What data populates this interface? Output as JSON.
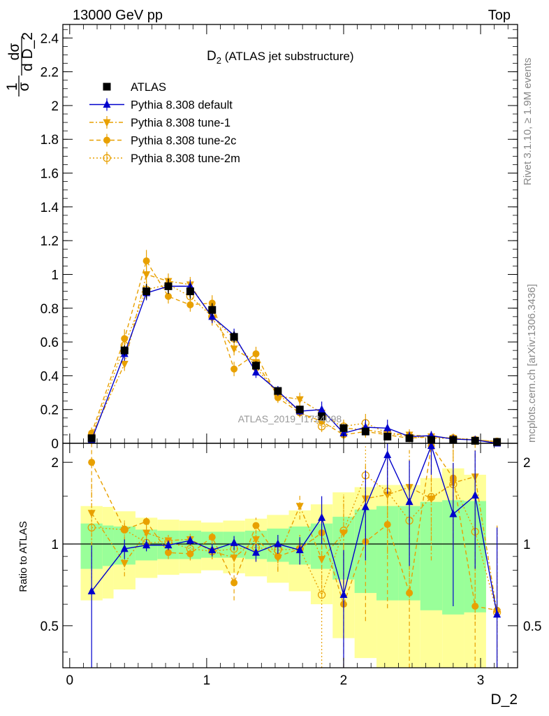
{
  "header": {
    "left_label": "13000 GeV pp",
    "right_label": "Top"
  },
  "side_text": {
    "rivet": "Rivet 3.1.10, ≥ 1.9M events",
    "mcplots": "mcplots.cern.ch [arXiv:1306.3436]"
  },
  "colors": {
    "data": "#000000",
    "default": "#0000cc",
    "tunes": "#e8a000",
    "band_inner": "#99ff99",
    "band_outer": "#ffff99"
  },
  "chart_data": {
    "type": "line",
    "title_main": "D",
    "title_sub": "2",
    "title_rest": " (ATLAS jet substructure)",
    "ylabel_parts": [
      "1",
      "σ",
      "dσ",
      "d D_2"
    ],
    "xlabel": "D_2",
    "watermark": "ATLAS_2019_I1724098",
    "ratio_ylabel": "Ratio to ATLAS",
    "xlim": [
      -0.05,
      3.27
    ],
    "ylim": [
      0,
      2.48
    ],
    "ratio_ylim": [
      0.35,
      2.35
    ],
    "ratio_scale": "log",
    "x_ticks": [
      "0",
      "1",
      "2",
      "3"
    ],
    "y_ticks": [
      "0",
      "0.2",
      "0.4",
      "0.6",
      "0.8",
      "1",
      "1.2",
      "1.4",
      "1.6",
      "1.8",
      "2",
      "2.2",
      "2.4"
    ],
    "ratio_ticks": [
      "0.5",
      "1",
      "2"
    ],
    "bins": [
      0.08,
      0.24,
      0.32,
      0.48,
      0.64,
      0.8,
      0.96,
      1.12,
      1.28,
      1.44,
      1.6,
      1.76,
      1.92,
      2.08,
      2.24,
      2.4,
      2.56,
      2.72,
      2.88,
      3.04,
      3.2
    ],
    "x": [
      0.16,
      0.4,
      0.56,
      0.72,
      0.88,
      1.04,
      1.2,
      1.36,
      1.52,
      1.68,
      1.84,
      2.0,
      2.16,
      2.32,
      2.48,
      2.64,
      2.8,
      2.96,
      3.12
    ],
    "data_values": [
      0.03,
      0.55,
      0.9,
      0.93,
      0.9,
      0.79,
      0.63,
      0.46,
      0.31,
      0.2,
      0.16,
      0.09,
      0.07,
      0.04,
      0.03,
      0.02,
      0.02,
      0.015,
      0.008
    ],
    "band_inner": [
      0.19,
      0.17,
      0.16,
      0.13,
      0.12,
      0.12,
      0.11,
      0.11,
      0.12,
      0.14,
      0.16,
      0.19,
      0.26,
      0.34,
      0.38,
      0.38,
      0.43,
      0.45,
      0.44
    ],
    "band_outer": [
      0.38,
      0.37,
      0.32,
      0.25,
      0.23,
      0.22,
      0.2,
      0.22,
      0.24,
      0.28,
      0.33,
      0.4,
      0.55,
      0.62,
      0.65,
      0.65,
      0.75,
      0.9,
      0.8
    ],
    "legend": [
      {
        "label": "ATLAS",
        "marker": "square",
        "color": "#000000"
      },
      {
        "label": "Pythia 8.308 default",
        "marker": "triangle-up",
        "color": "#0000cc",
        "dash": "solid"
      },
      {
        "label": "Pythia 8.308 tune-1",
        "marker": "triangle-down",
        "color": "#e8a000",
        "dash": "dashdot"
      },
      {
        "label": "Pythia 8.308 tune-2c",
        "marker": "circle",
        "color": "#e8a000",
        "dash": "dashed"
      },
      {
        "label": "Pythia 8.308 tune-2m",
        "marker": "open-circle",
        "color": "#e8a000",
        "dash": "dotted"
      }
    ],
    "series": [
      {
        "name": "Pythia 8.308 default",
        "values": [
          0.02,
          0.53,
          0.89,
          0.93,
          0.93,
          0.75,
          0.64,
          0.42,
          0.31,
          0.19,
          0.2,
          0.06,
          0.095,
          0.09,
          0.04,
          0.045,
          0.025,
          0.02,
          0.0
        ],
        "ratio": [
          0.67,
          0.96,
          0.99,
          0.99,
          1.03,
          0.95,
          1.01,
          0.93,
          1.0,
          0.95,
          1.25,
          0.65,
          1.37,
          2.13,
          1.43,
          2.3,
          1.29,
          1.51,
          0.55
        ],
        "ratio_err": [
          0.32,
          0.08,
          0.05,
          0.04,
          0.04,
          0.05,
          0.06,
          0.07,
          0.08,
          0.11,
          0.25,
          0.3,
          0.5,
          0.6,
          0.6,
          0.5,
          0.7,
          0.7,
          0.6
        ]
      },
      {
        "name": "Pythia 8.308 tune-1",
        "values": [
          0.04,
          0.47,
          1.0,
          0.96,
          0.94,
          0.74,
          0.56,
          0.48,
          0.28,
          0.26,
          0.18,
          0.09,
          0.08,
          0.06,
          0.05,
          0.04,
          0.03,
          0.02,
          0.01
        ],
        "ratio": [
          1.3,
          0.85,
          1.1,
          1.03,
          1.04,
          0.94,
          0.89,
          1.04,
          0.89,
          1.38,
          0.88,
          1.1,
          1.47,
          1.52,
          1.62,
          1.47,
          1.68,
          1.77,
          0.56
        ],
        "ratio_err": [
          0.4,
          0.09,
          0.07,
          0.05,
          0.05,
          0.06,
          0.07,
          0.08,
          0.1,
          0.15,
          0.25,
          0.4,
          0.5,
          0.6,
          0.6,
          0.6,
          0.7,
          0.7,
          0.6
        ]
      },
      {
        "name": "Pythia 8.308 tune-2c",
        "values": [
          0.06,
          0.62,
          1.08,
          0.87,
          0.82,
          0.83,
          0.44,
          0.53,
          0.27,
          0.18,
          0.13,
          0.05,
          0.07,
          0.05,
          0.03,
          0.04,
          0.03,
          0.02,
          0.01
        ],
        "ratio": [
          2.0,
          1.13,
          1.21,
          0.93,
          0.92,
          1.06,
          0.72,
          1.17,
          0.9,
          0.96,
          1.1,
          0.6,
          1.02,
          1.18,
          0.66,
          2.3,
          1.75,
          0.59,
          0.57
        ],
        "ratio_err": [
          0.5,
          0.1,
          0.07,
          0.05,
          0.05,
          0.06,
          0.1,
          0.08,
          0.1,
          0.12,
          0.25,
          0.4,
          0.5,
          0.6,
          0.6,
          0.6,
          0.7,
          0.5,
          0.6
        ]
      },
      {
        "name": "Pythia 8.308 tune-2m",
        "values": [
          0.04,
          0.58,
          0.91,
          0.94,
          0.87,
          0.75,
          0.62,
          0.45,
          0.29,
          0.19,
          0.1,
          0.1,
          0.12,
          0.06,
          0.04,
          0.03,
          0.03,
          0.02,
          0.01
        ],
        "ratio": [
          1.15,
          1.13,
          1.01,
          1.02,
          0.96,
          0.94,
          0.96,
          0.97,
          0.95,
          0.96,
          0.65,
          1.12,
          1.79,
          1.56,
          1.22,
          1.49,
          1.66,
          1.11,
          0.56
        ],
        "ratio_err": [
          0.4,
          0.09,
          0.06,
          0.05,
          0.05,
          0.06,
          0.07,
          0.08,
          0.1,
          0.12,
          0.3,
          0.4,
          0.5,
          0.6,
          0.6,
          0.6,
          0.7,
          0.6,
          0.6
        ]
      }
    ]
  }
}
